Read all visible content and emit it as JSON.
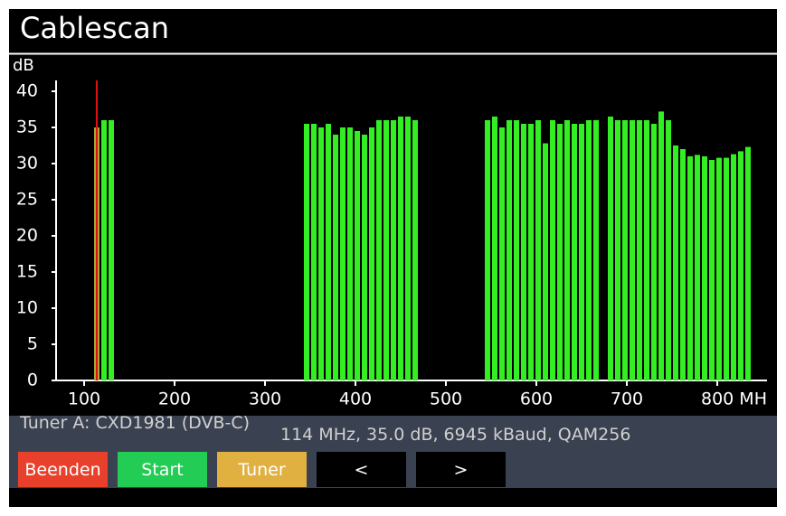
{
  "header": {
    "title": "Cablescan"
  },
  "chart_data": {
    "type": "bar",
    "y_label": "dB",
    "x": [
      114,
      122,
      130,
      346,
      354,
      362,
      370,
      378,
      386,
      394,
      402,
      410,
      418,
      426,
      434,
      442,
      450,
      458,
      466,
      546,
      554,
      562,
      570,
      578,
      586,
      594,
      602,
      610,
      618,
      626,
      634,
      642,
      650,
      658,
      666,
      682,
      690,
      698,
      706,
      714,
      722,
      730,
      738,
      746,
      754,
      762,
      770,
      778,
      786,
      794,
      802,
      810,
      818,
      826,
      834
    ],
    "values": [
      35,
      36,
      36,
      35.5,
      35.5,
      35,
      35.5,
      34,
      35,
      35,
      34.5,
      34,
      35,
      36,
      36,
      36,
      36.5,
      36.5,
      36,
      36,
      36.5,
      35,
      36,
      36,
      35.5,
      35.5,
      36,
      32.8,
      36,
      35.5,
      36,
      35.5,
      35.5,
      36,
      36,
      36.5,
      36,
      36,
      36,
      36,
      36,
      35.5,
      37.2,
      36,
      32.5,
      32,
      31,
      31.2,
      31,
      30.5,
      30.8,
      30.8,
      31.3,
      31.7,
      32.3
    ],
    "color": "#33ee22",
    "highlight_color": "#a8a838",
    "marker_x": 114,
    "marker_color": "#e01010",
    "xlim": [
      69,
      855
    ],
    "ylim": [
      0,
      41.5
    ],
    "xticks": [
      100,
      200,
      300,
      400,
      500,
      600,
      700,
      {
        "value": 800,
        "label": "800 MH"
      }
    ],
    "yticks": [
      0,
      5,
      10,
      15,
      20,
      25,
      30,
      35,
      40
    ]
  },
  "status": {
    "tuner": "Tuner A: CXD1981 (DVB-C)",
    "info": "114 MHz, 35.0 dB, 6945 kBaud, QAM256"
  },
  "buttons": [
    "Beenden",
    "Start",
    "Tuner",
    "<",
    ">"
  ]
}
